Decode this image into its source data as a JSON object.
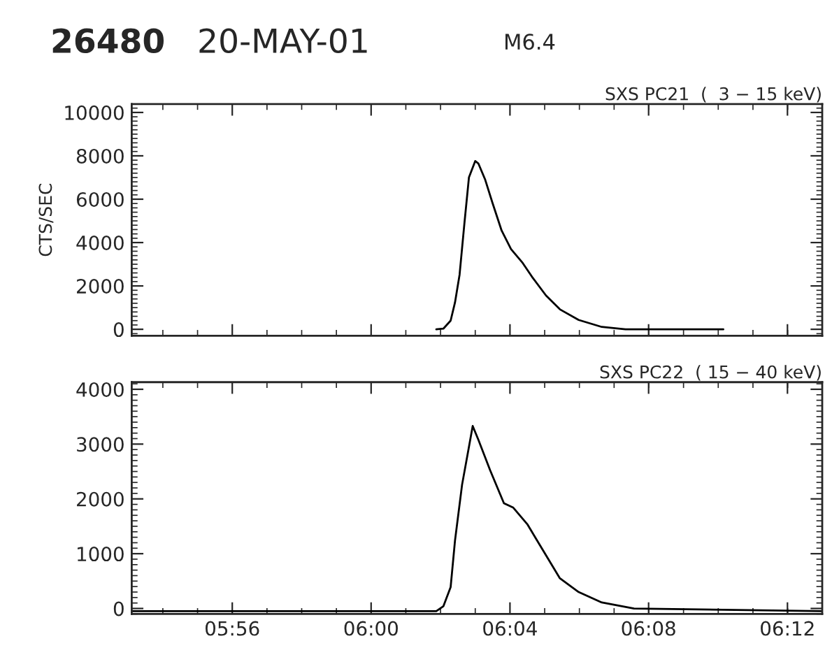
{
  "chart_data": [
    {
      "type": "line",
      "title": "SXS PC21  (  3 − 15 keV)",
      "ylabel": "CTS/SEC",
      "annotations": [
        "26480",
        "20-MAY-01",
        "M6.4"
      ],
      "series": [
        {
          "color": "#000000",
          "x": [
            6.0313,
            6.0347,
            6.0382,
            6.0403,
            6.0425,
            6.0448,
            6.047,
            6.05,
            6.0515,
            6.0548,
            6.0583,
            6.0627,
            6.0672,
            6.0728,
            6.0773,
            6.084,
            6.0907,
            6.0997,
            6.1108,
            6.1222,
            6.135,
            6.1692
          ],
          "values": [
            0,
            30,
            400,
            1240,
            2520,
            4870,
            7010,
            7760,
            7650,
            6900,
            5830,
            4550,
            3700,
            3060,
            2420,
            1560,
            920,
            430,
            110,
            0,
            0,
            0
          ]
        }
      ],
      "xlim": [
        5.885,
        6.2167
      ],
      "xticks": [
        {
          "value": 5.9333,
          "label": null
        },
        {
          "value": 6.0,
          "label": null
        },
        {
          "value": 6.0667,
          "label": null
        },
        {
          "value": 6.1333,
          "label": null
        },
        {
          "value": 6.2,
          "label": null
        }
      ],
      "ylim": [
        -300,
        10390
      ],
      "yticks": [
        0,
        2000,
        4000,
        6000,
        8000,
        10000
      ],
      "tick_labels": "y",
      "grid": false
    },
    {
      "type": "line",
      "title": "SXS PC22  ( 15 − 40 keV)",
      "series": [
        {
          "color": "#000000",
          "x": [
            5.885,
            5.96,
            6.0313,
            6.0347,
            6.0382,
            6.0403,
            6.0437,
            6.047,
            6.0488,
            6.0515,
            6.0572,
            6.0638,
            6.0683,
            6.075,
            6.0818,
            6.0907,
            6.0997,
            6.1108,
            6.1263,
            6.2167
          ],
          "values": [
            -50,
            -50,
            -50,
            40,
            390,
            1240,
            2260,
            2950,
            3330,
            3080,
            2520,
            1920,
            1840,
            1540,
            1110,
            550,
            300,
            110,
            0,
            -50
          ]
        }
      ],
      "xlim": [
        5.885,
        6.2167
      ],
      "xticks": [
        {
          "value": 5.9333,
          "label": "05:56"
        },
        {
          "value": 6.0,
          "label": "06:00"
        },
        {
          "value": 6.0667,
          "label": "06:04"
        },
        {
          "value": 6.1333,
          "label": "06:08"
        },
        {
          "value": 6.2,
          "label": "06:12"
        }
      ],
      "ylim": [
        -100,
        4130
      ],
      "yticks": [
        0,
        1000,
        2000,
        3000,
        4000
      ],
      "grid": false
    }
  ]
}
